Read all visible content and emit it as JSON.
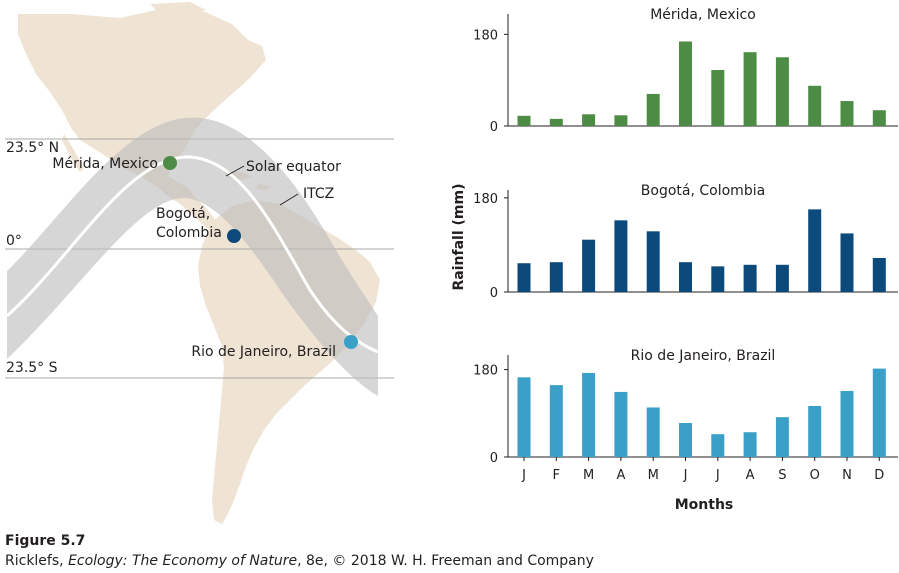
{
  "map": {
    "latitudes": [
      "23.5° N",
      "0°",
      "23.5° S"
    ],
    "bands": {
      "solar_equator": "Solar equator",
      "itcz": "ITCZ"
    },
    "cities": [
      {
        "name": "Mérida, Mexico",
        "color": "#4c8c44"
      },
      {
        "name_line1": "Bogotá,",
        "name_line2": "Colombia",
        "color": "#0b4a7a"
      },
      {
        "name": "Rio de Janeiro, Brazil",
        "color": "#3aa0c8"
      }
    ],
    "colors": {
      "land": "#efe3d3",
      "band": "#c8c8c8",
      "equator_line": "#ffffff"
    }
  },
  "chart_data": [
    {
      "type": "bar",
      "title": "Mérida, Mexico",
      "categories": [
        "J",
        "F",
        "M",
        "A",
        "M",
        "J",
        "J",
        "A",
        "S",
        "O",
        "N",
        "D"
      ],
      "values": [
        20,
        14,
        23,
        21,
        63,
        166,
        110,
        145,
        135,
        79,
        49,
        31
      ],
      "ylim": [
        0,
        220
      ],
      "yticks": [
        0,
        180
      ],
      "color": "#4c8c44"
    },
    {
      "type": "bar",
      "title": "Bogotá, Colombia",
      "categories": [
        "J",
        "F",
        "M",
        "A",
        "M",
        "J",
        "J",
        "A",
        "S",
        "O",
        "N",
        "D"
      ],
      "values": [
        55,
        57,
        100,
        137,
        116,
        57,
        49,
        52,
        52,
        158,
        112,
        65
      ],
      "ylim": [
        0,
        195
      ],
      "yticks": [
        0,
        180
      ],
      "color": "#0b4a7a"
    },
    {
      "type": "bar",
      "title": "Rio de Janeiro, Brazil",
      "categories": [
        "J",
        "F",
        "M",
        "A",
        "M",
        "J",
        "J",
        "A",
        "S",
        "O",
        "N",
        "D"
      ],
      "values": [
        164,
        148,
        173,
        134,
        102,
        70,
        47,
        51,
        82,
        105,
        136,
        182
      ],
      "ylim": [
        0,
        210
      ],
      "yticks": [
        0,
        180
      ],
      "color": "#3aa0c8"
    }
  ],
  "axes": {
    "ylabel": "Rainfall (mm)",
    "xlabel": "Months",
    "month_labels": [
      "J",
      "F",
      "M",
      "A",
      "M",
      "J",
      "J",
      "A",
      "S",
      "O",
      "N",
      "D"
    ]
  },
  "caption": {
    "figure": "Figure 5.7",
    "credit_prefix": "Ricklefs, ",
    "credit_title": "Ecology: The Economy of Nature",
    "credit_suffix": ", 8e, © 2018 W. H. Freeman and Company"
  }
}
